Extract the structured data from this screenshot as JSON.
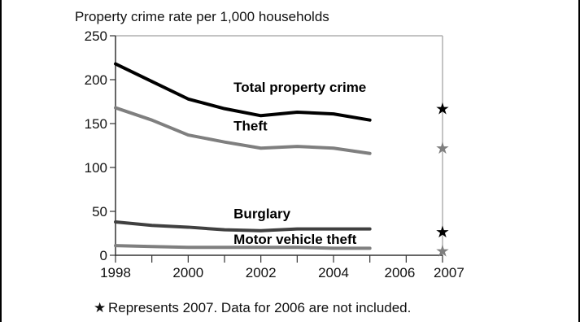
{
  "chart_data": {
    "type": "line",
    "title": "",
    "ylabel": "Property crime rate per 1,000 households",
    "xlabel": "",
    "ylim": [
      0,
      250
    ],
    "xlim": [
      1998,
      2007
    ],
    "yticks": [
      0,
      50,
      100,
      150,
      200,
      250
    ],
    "xticks": [
      1998,
      2000,
      2002,
      2004,
      2006,
      2007
    ],
    "grid": false,
    "x": [
      1998,
      1999,
      2000,
      2001,
      2002,
      2003,
      2004,
      2005
    ],
    "series": [
      {
        "name": "Total property crime",
        "color": "#000000",
        "values": [
          218,
          198,
          178,
          167,
          159,
          163,
          161,
          154
        ],
        "marker_2007": 167
      },
      {
        "name": "Theft",
        "color": "#7f7f7f",
        "values": [
          168,
          154,
          137,
          129,
          122,
          124,
          122,
          116
        ],
        "marker_2007": 122
      },
      {
        "name": "Burglary",
        "color": "#404040",
        "values": [
          38,
          34,
          32,
          29,
          28,
          30,
          30,
          30
        ],
        "marker_2007": 27
      },
      {
        "name": "Motor vehicle theft",
        "color": "#7f7f7f",
        "values": [
          11,
          10,
          9,
          9,
          9,
          9,
          8,
          8
        ],
        "marker_2007": 5
      }
    ],
    "star_2007_colors": [
      "#000000",
      "#7f7f7f",
      "#000000",
      "#7f7f7f"
    ],
    "footnote": "Represents 2007. Data for 2006 are not included.",
    "footnote_symbol": "★",
    "star_symbol": "★"
  }
}
